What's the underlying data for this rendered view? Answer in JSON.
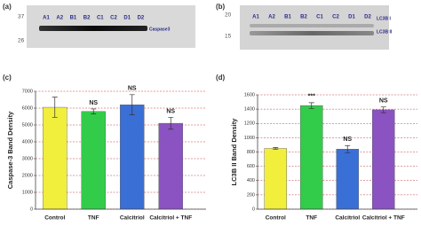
{
  "blot_a": {
    "panel_label": "(a)",
    "markers": [
      "37",
      "26"
    ],
    "lanes": [
      "A1",
      "A2",
      "B1",
      "B2",
      "C1",
      "C2",
      "D1",
      "D2"
    ],
    "bands": [
      "Caspase3"
    ]
  },
  "blot_b": {
    "panel_label": "(b)",
    "markers": [
      "20",
      "15"
    ],
    "lanes": [
      "A1",
      "A2",
      "B1",
      "B2",
      "C1",
      "C2",
      "D1",
      "D2"
    ],
    "bands": [
      "LC3B I",
      "LC3B II"
    ]
  },
  "chart_data": [
    {
      "type": "bar",
      "panel_label": "(c)",
      "y_label": "Caspase-3 Band Density",
      "categories": [
        "Control",
        "TNF",
        "Calcitriol",
        "Calcitriol + TNF"
      ],
      "values": [
        6050,
        5800,
        6200,
        5100
      ],
      "errors": [
        600,
        150,
        600,
        350
      ],
      "colors": [
        "#f2ee3c",
        "#33cc4a",
        "#3a6fd6",
        "#8b52c2"
      ],
      "annotations": [
        null,
        "NS",
        "NS",
        "NS"
      ],
      "ylim": [
        0,
        7000
      ],
      "yticks": [
        0,
        1000,
        2000,
        3000,
        4000,
        5000,
        6000,
        7000
      ],
      "grid": true
    },
    {
      "type": "bar",
      "panel_label": "(d)",
      "y_label": "LC3B II Band Density",
      "categories": [
        "Control",
        "TNF",
        "Calcitriol",
        "Calcitriol + TNF"
      ],
      "values": [
        850,
        1450,
        840,
        1390
      ],
      "errors": [
        12,
        40,
        50,
        40
      ],
      "colors": [
        "#f2ee3c",
        "#33cc4a",
        "#3a6fd6",
        "#8b52c2"
      ],
      "annotations": [
        null,
        "***",
        "NS",
        "NS"
      ],
      "ylim": [
        0,
        1600
      ],
      "yticks": [
        0,
        200,
        400,
        600,
        800,
        1000,
        1200,
        1400,
        1600
      ],
      "grid": true
    }
  ]
}
